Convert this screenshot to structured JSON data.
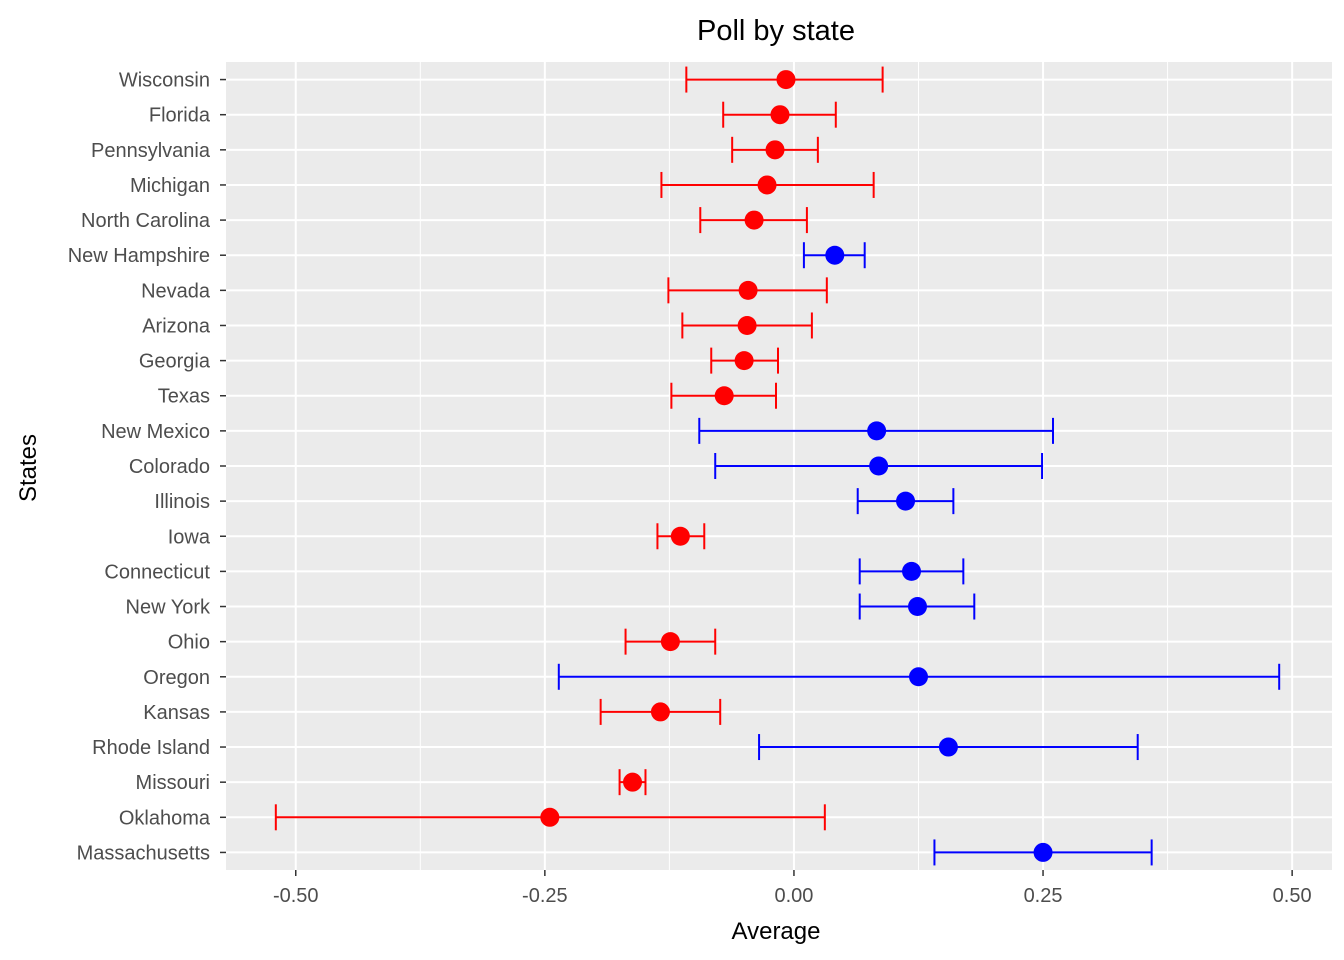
{
  "chart_data": {
    "type": "scatter",
    "title": "Poll by state",
    "xlabel": "Average",
    "ylabel": "States",
    "xlim": [
      -0.57,
      0.54
    ],
    "x_ticks": [
      -0.5,
      -0.25,
      0.0,
      0.25,
      0.5
    ],
    "x_tick_labels": [
      "-0.50",
      "-0.25",
      "0.00",
      "0.25",
      "0.50"
    ],
    "grid": true,
    "colors": {
      "panel": "#ebebeb",
      "grid": "#ffffff",
      "red": "#ff0000",
      "blue": "#0000ff",
      "tick_text": "#4d4d4d"
    },
    "points": [
      {
        "state": "Wisconsin",
        "avg": -0.008,
        "lo": -0.108,
        "hi": 0.089,
        "color": "red"
      },
      {
        "state": "Florida",
        "avg": -0.014,
        "lo": -0.071,
        "hi": 0.042,
        "color": "red"
      },
      {
        "state": "Pennsylvania",
        "avg": -0.019,
        "lo": -0.062,
        "hi": 0.024,
        "color": "red"
      },
      {
        "state": "Michigan",
        "avg": -0.027,
        "lo": -0.133,
        "hi": 0.08,
        "color": "red"
      },
      {
        "state": "North Carolina",
        "avg": -0.04,
        "lo": -0.094,
        "hi": 0.013,
        "color": "red"
      },
      {
        "state": "New Hampshire",
        "avg": 0.041,
        "lo": 0.01,
        "hi": 0.071,
        "color": "blue"
      },
      {
        "state": "Nevada",
        "avg": -0.046,
        "lo": -0.126,
        "hi": 0.033,
        "color": "red"
      },
      {
        "state": "Arizona",
        "avg": -0.047,
        "lo": -0.112,
        "hi": 0.018,
        "color": "red"
      },
      {
        "state": "Georgia",
        "avg": -0.05,
        "lo": -0.083,
        "hi": -0.016,
        "color": "red"
      },
      {
        "state": "Texas",
        "avg": -0.07,
        "lo": -0.123,
        "hi": -0.018,
        "color": "red"
      },
      {
        "state": "New Mexico",
        "avg": 0.083,
        "lo": -0.095,
        "hi": 0.26,
        "color": "blue"
      },
      {
        "state": "Colorado",
        "avg": 0.085,
        "lo": -0.079,
        "hi": 0.249,
        "color": "blue"
      },
      {
        "state": "Illinois",
        "avg": 0.112,
        "lo": 0.064,
        "hi": 0.16,
        "color": "blue"
      },
      {
        "state": "Iowa",
        "avg": -0.114,
        "lo": -0.137,
        "hi": -0.09,
        "color": "red"
      },
      {
        "state": "Connecticut",
        "avg": 0.118,
        "lo": 0.066,
        "hi": 0.17,
        "color": "blue"
      },
      {
        "state": "New York",
        "avg": 0.124,
        "lo": 0.066,
        "hi": 0.181,
        "color": "blue"
      },
      {
        "state": "Ohio",
        "avg": -0.124,
        "lo": -0.169,
        "hi": -0.079,
        "color": "red"
      },
      {
        "state": "Oregon",
        "avg": 0.125,
        "lo": -0.236,
        "hi": 0.487,
        "color": "blue"
      },
      {
        "state": "Kansas",
        "avg": -0.134,
        "lo": -0.194,
        "hi": -0.074,
        "color": "red"
      },
      {
        "state": "Rhode Island",
        "avg": 0.155,
        "lo": -0.035,
        "hi": 0.345,
        "color": "blue"
      },
      {
        "state": "Missouri",
        "avg": -0.162,
        "lo": -0.175,
        "hi": -0.149,
        "color": "red"
      },
      {
        "state": "Oklahoma",
        "avg": -0.245,
        "lo": -0.52,
        "hi": 0.031,
        "color": "red"
      },
      {
        "state": "Massachusetts",
        "avg": 0.25,
        "lo": 0.141,
        "hi": 0.359,
        "color": "blue"
      }
    ]
  }
}
